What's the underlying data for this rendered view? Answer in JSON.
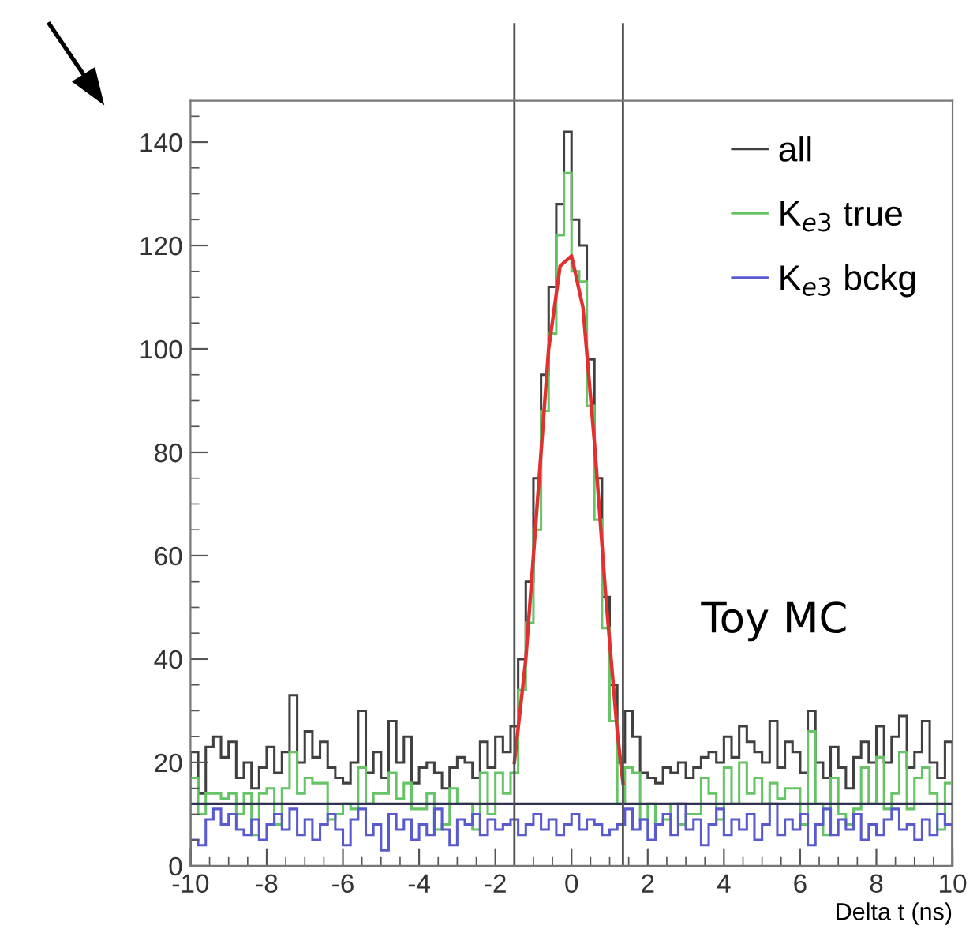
{
  "chart_data": {
    "type": "histogram",
    "xlabel": "Delta t (ns)",
    "bins": [
      -10,
      -9.8,
      -9.6,
      -9.4,
      -9.2,
      -9,
      -8.8,
      -8.6,
      -8.4,
      -8.2,
      -8,
      -7.8,
      -7.6,
      -7.4,
      -7.2,
      -7,
      -6.8,
      -6.6,
      -6.4,
      -6.2,
      -6,
      -5.8,
      -5.6,
      -5.4,
      -5.2,
      -5,
      -4.8,
      -4.6,
      -4.4,
      -4.2,
      -4,
      -3.8,
      -3.6,
      -3.4,
      -3.2,
      -3,
      -2.8,
      -2.6,
      -2.4,
      -2.2,
      -2,
      -1.8,
      -1.6,
      -1.4,
      -1.2,
      -1,
      -0.8,
      -0.6,
      -0.4,
      -0.2,
      0,
      0.2,
      0.4,
      0.6,
      0.8,
      1,
      1.2,
      1.4,
      1.6,
      1.8,
      2,
      2.2,
      2.4,
      2.6,
      2.8,
      3,
      3.2,
      3.4,
      3.6,
      3.8,
      4,
      4.2,
      4.4,
      4.6,
      4.8,
      5,
      5.2,
      5.4,
      5.6,
      5.8,
      6,
      6.2,
      6.4,
      6.6,
      6.8,
      7,
      7.2,
      7.4,
      7.6,
      7.8,
      8,
      8.2,
      8.4,
      8.6,
      8.8,
      9,
      9.2,
      9.4,
      9.6,
      9.8,
      10
    ],
    "series": [
      {
        "name": "all",
        "color": "#404040",
        "values": [
          22,
          14,
          23,
          25,
          21,
          24,
          17,
          20,
          15,
          19,
          23,
          18,
          22,
          33,
          20,
          26,
          21,
          24,
          19,
          17,
          16,
          20,
          30,
          18,
          22,
          17,
          28,
          20,
          25,
          16,
          19,
          20,
          18,
          15,
          19,
          21,
          20,
          17,
          24,
          19,
          25,
          22,
          27,
          40,
          55,
          75,
          95,
          112,
          128,
          142,
          125,
          120,
          98,
          75,
          52,
          35,
          20,
          30,
          25,
          18,
          17,
          16,
          19,
          18,
          20,
          17,
          19,
          21,
          22,
          20,
          25,
          21,
          27,
          24,
          22,
          20,
          28,
          19,
          24,
          22,
          18,
          30,
          20,
          17,
          23,
          19,
          15,
          21,
          24,
          20,
          27,
          20,
          25,
          29,
          19,
          22,
          28,
          20,
          17,
          24
        ]
      },
      {
        "name": "K$_{e3}$ true",
        "color": "#66c466",
        "values": [
          17,
          10,
          14,
          14,
          13,
          14,
          10,
          14,
          6,
          14,
          15,
          8,
          15,
          22,
          14,
          17,
          16,
          16,
          9,
          10,
          12,
          11,
          19,
          12,
          14,
          14,
          18,
          13,
          16,
          11,
          11,
          14,
          7,
          8,
          15,
          12,
          12,
          7,
          18,
          10,
          18,
          14,
          18,
          34,
          47,
          65,
          88,
          103,
          122,
          134,
          115,
          113,
          89,
          67,
          46,
          28,
          12,
          19,
          18,
          9,
          12,
          8,
          9,
          12,
          8,
          10,
          10,
          17,
          14,
          9,
          19,
          12,
          20,
          14,
          17,
          12,
          16,
          13,
          15,
          15,
          8,
          26,
          12,
          6,
          17,
          10,
          8,
          11,
          19,
          12,
          21,
          11,
          14,
          22,
          11,
          17,
          19,
          14,
          7,
          16
        ]
      },
      {
        "name": "K$_{e3}$ bckg",
        "color": "#5a5ad0",
        "values": [
          5,
          4,
          9,
          11,
          8,
          10,
          7,
          6,
          9,
          5,
          8,
          10,
          7,
          11,
          6,
          9,
          5,
          8,
          10,
          7,
          4,
          9,
          11,
          6,
          8,
          3,
          10,
          7,
          9,
          5,
          8,
          6,
          11,
          7,
          4,
          9,
          8,
          10,
          6,
          9,
          7,
          8,
          9,
          6,
          8,
          10,
          7,
          9,
          6,
          8,
          10,
          7,
          9,
          8,
          6,
          7,
          8,
          11,
          7,
          9,
          5,
          8,
          10,
          6,
          12,
          7,
          9,
          4,
          8,
          11,
          6,
          9,
          7,
          10,
          5,
          8,
          12,
          6,
          9,
          7,
          10,
          4,
          8,
          11,
          6,
          9,
          7,
          10,
          5,
          8,
          6,
          9,
          11,
          7,
          8,
          5,
          9,
          6,
          10,
          8
        ]
      },
      {
        "type": "line",
        "color": "#e03030",
        "x": [
          -1.5,
          -1.2,
          -0.9,
          -0.6,
          -0.3,
          0,
          0.3,
          0.6,
          0.9,
          1.2,
          1.35
        ],
        "values": [
          20,
          40,
          70,
          100,
          116,
          118,
          108,
          82,
          52,
          26,
          16
        ]
      }
    ],
    "xlim": [
      -10,
      10
    ],
    "xticks": [
      -10,
      -8,
      -6,
      -4,
      -2,
      0,
      2,
      4,
      6,
      8,
      10
    ],
    "ylim": [
      0,
      148
    ],
    "yticks": [
      0,
      20,
      40,
      60,
      80,
      100,
      120,
      140
    ],
    "ref_lines": [
      {
        "axis": "y",
        "value": 12,
        "color": "#303050"
      },
      {
        "axis": "x",
        "value": -1.5,
        "color": "#505050"
      },
      {
        "axis": "x",
        "value": 1.35,
        "color": "#505050"
      }
    ],
    "annotations": [
      "Toy MC"
    ],
    "legend": "top right",
    "grid": false
  }
}
